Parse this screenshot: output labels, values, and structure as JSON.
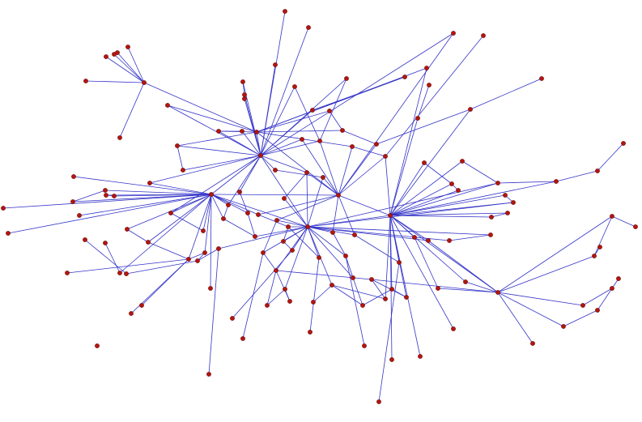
{
  "graph": {
    "type": "network",
    "colors": {
      "edge": "#3434c8",
      "node": "#b5150f",
      "node_outline": "#6a0a08",
      "background": "#ffffff"
    },
    "edges": [
      [
        33,
        1
      ],
      [
        33,
        2
      ],
      [
        33,
        7
      ],
      [
        33,
        14
      ],
      [
        33,
        13
      ],
      [
        33,
        17
      ],
      [
        33,
        18
      ],
      [
        33,
        23
      ],
      [
        33,
        25
      ],
      [
        33,
        29
      ],
      [
        33,
        40
      ],
      [
        33,
        41
      ],
      [
        33,
        42
      ],
      [
        33,
        45
      ],
      [
        33,
        49
      ],
      [
        33,
        50
      ],
      [
        33,
        59
      ],
      [
        33,
        60
      ],
      [
        33,
        73
      ],
      [
        33,
        28
      ],
      [
        33,
        30
      ],
      [
        33,
        19
      ],
      [
        33,
        12
      ],
      [
        33,
        3
      ],
      [
        33,
        138
      ],
      [
        24,
        18
      ],
      [
        24,
        11
      ],
      [
        24,
        29
      ],
      [
        24,
        23
      ],
      [
        24,
        26
      ],
      [
        24,
        31
      ],
      [
        24,
        20
      ],
      [
        24,
        9
      ],
      [
        24,
        8
      ],
      [
        24,
        33
      ],
      [
        24,
        52
      ],
      [
        49,
        44
      ],
      [
        49,
        46
      ],
      [
        49,
        47
      ],
      [
        49,
        48
      ],
      [
        49,
        57
      ],
      [
        49,
        58
      ],
      [
        49,
        68
      ],
      [
        49,
        75
      ],
      [
        49,
        45
      ],
      [
        49,
        69
      ],
      [
        49,
        78
      ],
      [
        49,
        79
      ],
      [
        49,
        89
      ],
      [
        49,
        97
      ],
      [
        49,
        59
      ],
      [
        49,
        60
      ],
      [
        49,
        70
      ],
      [
        49,
        61
      ],
      [
        49,
        62
      ],
      [
        49,
        73
      ],
      [
        49,
        52
      ],
      [
        49,
        109
      ],
      [
        49,
        99
      ],
      [
        73,
        42
      ],
      [
        73,
        43
      ],
      [
        73,
        51
      ],
      [
        73,
        71
      ],
      [
        73,
        72
      ],
      [
        73,
        80
      ],
      [
        73,
        81
      ],
      [
        73,
        82
      ],
      [
        73,
        90
      ],
      [
        73,
        91
      ],
      [
        73,
        92
      ],
      [
        73,
        93
      ],
      [
        73,
        74
      ],
      [
        73,
        102
      ],
      [
        73,
        104
      ],
      [
        73,
        110
      ],
      [
        73,
        103
      ],
      [
        73,
        88
      ],
      [
        73,
        63
      ],
      [
        73,
        84
      ],
      [
        73,
        85
      ],
      [
        73,
        86
      ],
      [
        73,
        55
      ],
      [
        73,
        64
      ],
      [
        63,
        34
      ],
      [
        63,
        35
      ],
      [
        63,
        36
      ],
      [
        63,
        22
      ],
      [
        63,
        21
      ],
      [
        63,
        8
      ],
      [
        63,
        52
      ],
      [
        63,
        53
      ],
      [
        63,
        54
      ],
      [
        63,
        55
      ],
      [
        63,
        56
      ],
      [
        63,
        64
      ],
      [
        63,
        65
      ],
      [
        63,
        87
      ],
      [
        63,
        83
      ],
      [
        63,
        84
      ],
      [
        63,
        94
      ],
      [
        63,
        113
      ],
      [
        63,
        114
      ],
      [
        63,
        112
      ],
      [
        63,
        133
      ],
      [
        63,
        131
      ],
      [
        63,
        126
      ],
      [
        63,
        106
      ],
      [
        63,
        116
      ],
      [
        63,
        39
      ],
      [
        52,
        28
      ],
      [
        52,
        30
      ],
      [
        52,
        31
      ],
      [
        52,
        32
      ],
      [
        52,
        42
      ],
      [
        52,
        43
      ],
      [
        52,
        62
      ],
      [
        52,
        71
      ],
      [
        52,
        74
      ],
      [
        52,
        82
      ],
      [
        52,
        34
      ],
      [
        52,
        3
      ],
      [
        116,
        66
      ],
      [
        116,
        95
      ],
      [
        116,
        117
      ],
      [
        116,
        124
      ],
      [
        116,
        132
      ],
      [
        116,
        106
      ],
      [
        116,
        115
      ],
      [
        116,
        105
      ],
      [
        116,
        84
      ],
      [
        37,
        38
      ],
      [
        38,
        39
      ],
      [
        39,
        55
      ],
      [
        66,
        67
      ],
      [
        66,
        95
      ],
      [
        96,
        95
      ],
      [
        107,
        118
      ],
      [
        108,
        117
      ],
      [
        124,
        118
      ],
      [
        102,
        120
      ],
      [
        102,
        121
      ],
      [
        102,
        105
      ],
      [
        103,
        111
      ],
      [
        104,
        112
      ],
      [
        110,
        121
      ],
      [
        111,
        113
      ],
      [
        113,
        114
      ],
      [
        105,
        114
      ],
      [
        91,
        123
      ],
      [
        90,
        127
      ],
      [
        92,
        128
      ],
      [
        93,
        130
      ],
      [
        94,
        135
      ],
      [
        134,
        88
      ],
      [
        119,
        97
      ],
      [
        125,
        97
      ],
      [
        101,
        97
      ],
      [
        99,
        77
      ],
      [
        76,
        100
      ],
      [
        100,
        98
      ],
      [
        98,
        89
      ],
      [
        89,
        97
      ],
      [
        4,
        34
      ],
      [
        15,
        21
      ],
      [
        21,
        32
      ],
      [
        16,
        22
      ],
      [
        9,
        19
      ],
      [
        12,
        28
      ],
      [
        5,
        11
      ],
      [
        6,
        11
      ],
      [
        136,
        11
      ],
      [
        137,
        11
      ],
      [
        10,
        11
      ],
      [
        11,
        27
      ],
      [
        13,
        17
      ],
      [
        14,
        28
      ],
      [
        72,
        81
      ],
      [
        72,
        62
      ],
      [
        72,
        92
      ],
      [
        81,
        91
      ],
      [
        80,
        61
      ],
      [
        90,
        102
      ],
      [
        93,
        103
      ],
      [
        82,
        94
      ],
      [
        83,
        115
      ],
      [
        85,
        86
      ],
      [
        53,
        54
      ],
      [
        56,
        64
      ],
      [
        65,
        87
      ],
      [
        40,
        29
      ],
      [
        41,
        43
      ],
      [
        26,
        32
      ],
      [
        20,
        26
      ],
      [
        23,
        25
      ],
      [
        47,
        48
      ],
      [
        46,
        57
      ],
      [
        69,
        78
      ],
      [
        78,
        97
      ],
      [
        88,
        98
      ],
      [
        70,
        80
      ],
      [
        50,
        61
      ],
      [
        104,
        111
      ],
      [
        105,
        112
      ],
      [
        122,
        104
      ],
      [
        120,
        110
      ],
      [
        74,
        93
      ],
      [
        71,
        90
      ],
      [
        35,
        53
      ],
      [
        36,
        55
      ],
      [
        31,
        34
      ],
      [
        42,
        51
      ],
      [
        59,
        79
      ],
      [
        60,
        70
      ]
    ]
  }
}
